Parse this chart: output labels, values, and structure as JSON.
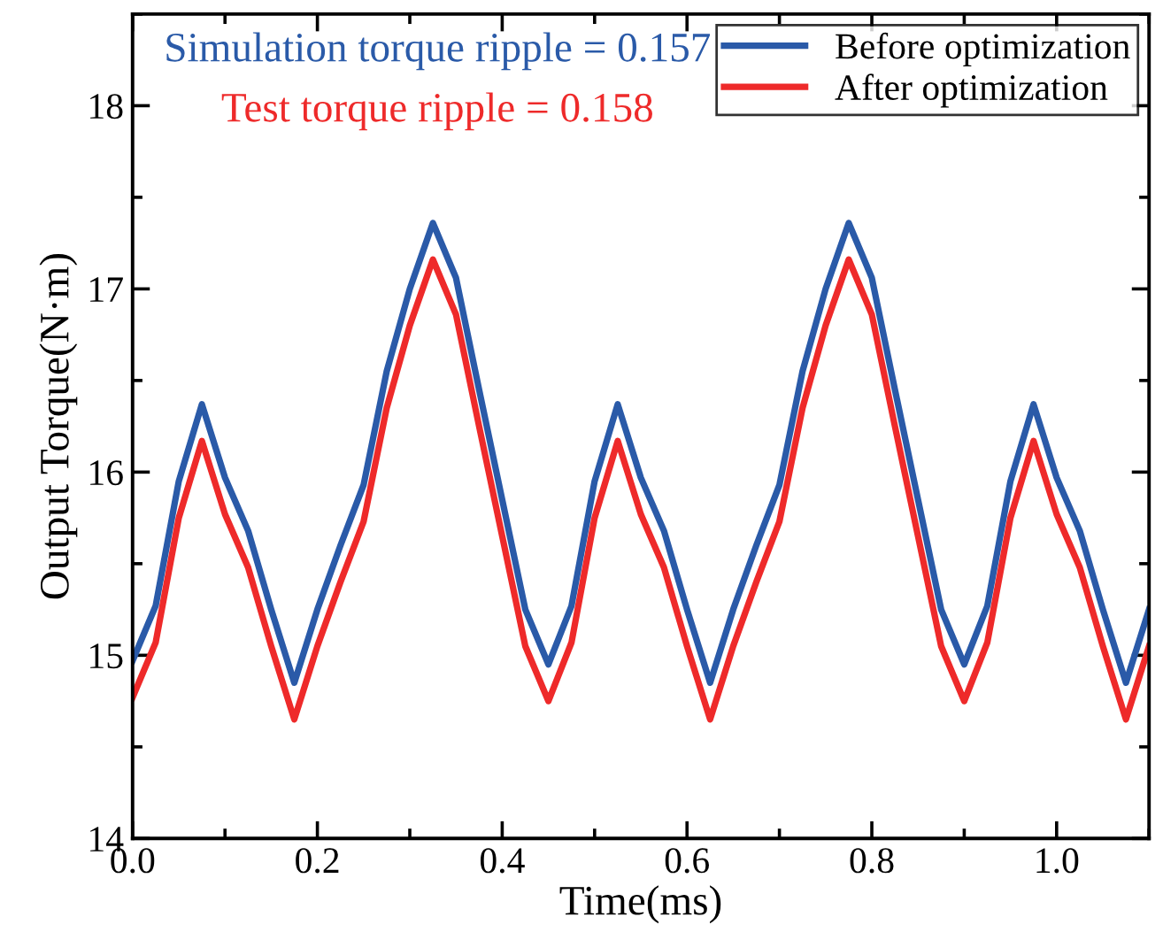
{
  "chart_data": {
    "type": "line",
    "xlabel": "Time(ms)",
    "ylabel": "Output Torque(N·m)",
    "annotations": [
      "Simulation torque ripple = 0.157",
      "Test torque ripple = 0.158"
    ],
    "x": [
      0,
      0.025,
      0.05,
      0.075,
      0.1,
      0.125,
      0.15,
      0.175,
      0.2,
      0.225,
      0.25,
      0.275,
      0.3,
      0.325,
      0.35,
      0.375,
      0.4,
      0.425,
      0.45,
      0.475,
      0.5,
      0.525,
      0.55,
      0.575,
      0.6,
      0.625,
      0.65,
      0.675,
      0.7,
      0.725,
      0.75,
      0.775,
      0.8,
      0.825,
      0.85,
      0.875,
      0.9,
      0.925,
      0.95,
      0.975,
      1.0,
      1.025,
      1.05,
      1.075,
      1.1
    ],
    "series": [
      {
        "name": "Before optimization",
        "color": "#2a5aa8",
        "values": [
          14.97,
          15.27,
          15.95,
          16.37,
          15.97,
          15.68,
          15.25,
          14.85,
          15.25,
          15.6,
          15.93,
          16.55,
          17.0,
          17.36,
          17.06,
          16.45,
          15.85,
          15.25,
          14.95,
          15.27,
          15.95,
          16.37,
          15.97,
          15.68,
          15.25,
          14.85,
          15.25,
          15.6,
          15.93,
          16.55,
          17.0,
          17.36,
          17.06,
          16.45,
          15.85,
          15.25,
          14.95,
          15.27,
          15.95,
          16.37,
          15.97,
          15.68,
          15.25,
          14.85,
          15.25
        ]
      },
      {
        "name": "After optimization",
        "color": "#ee2a2a",
        "values": [
          14.77,
          15.07,
          15.75,
          16.17,
          15.77,
          15.48,
          15.05,
          14.65,
          15.05,
          15.4,
          15.73,
          16.35,
          16.8,
          17.16,
          16.86,
          16.25,
          15.65,
          15.05,
          14.75,
          15.07,
          15.75,
          16.17,
          15.77,
          15.48,
          15.05,
          14.65,
          15.05,
          15.4,
          15.73,
          16.35,
          16.8,
          17.16,
          16.86,
          16.25,
          15.65,
          15.05,
          14.75,
          15.07,
          15.75,
          16.17,
          15.77,
          15.48,
          15.05,
          14.65,
          15.05
        ]
      }
    ],
    "xlim": [
      0,
      1.1
    ],
    "xticks": [
      {
        "value": 0,
        "label": "0.0"
      },
      0.2,
      0.4,
      0.6,
      0.8,
      {
        "value": 1.0,
        "label": "1.0"
      }
    ],
    "ylim": [
      14,
      18.5
    ],
    "yticks": [
      14,
      15,
      16,
      17,
      18
    ],
    "grid": false,
    "legend": "top right",
    "marker": "none",
    "line_style": "solid"
  }
}
